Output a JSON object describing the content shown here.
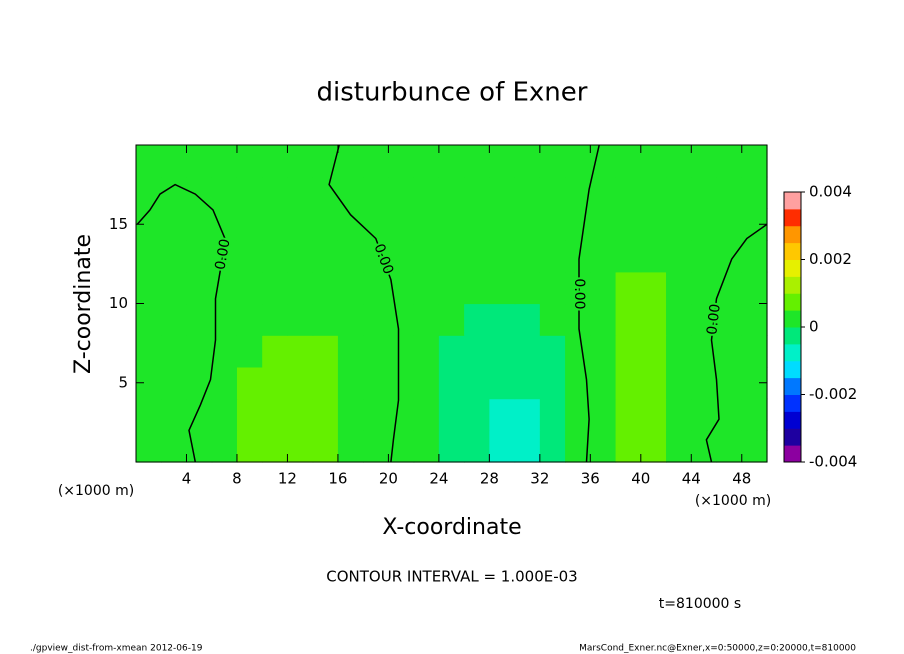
{
  "chart_data": {
    "type": "contour",
    "title": "disturbunce of Exner",
    "xlabel": "X-coordinate",
    "ylabel": "Z-coordinate",
    "x_unit": "(×1000 m)",
    "note": "CONTOUR INTERVAL = 1.000E-03",
    "time_label": "t=810000 s",
    "footer_left": "./gpview_dist-from-xmean  2012-06-19",
    "footer_right": "MarsCond_Exner.nc@Exner,x=0:50000,z=0:20000,t=810000",
    "xlim": [
      0,
      50
    ],
    "ylim": [
      0,
      20
    ],
    "xticks": [
      4,
      8,
      12,
      16,
      20,
      24,
      28,
      32,
      36,
      40,
      44,
      48
    ],
    "yticks": [
      5,
      10,
      15
    ],
    "x": [
      1,
      3,
      5,
      7,
      9,
      11,
      13,
      15,
      17,
      19,
      21,
      23,
      25,
      27,
      29,
      31,
      33,
      35,
      37,
      39,
      41,
      43,
      45,
      47,
      49
    ],
    "y": [
      1,
      3,
      5,
      7,
      9,
      11,
      13,
      15,
      17,
      19
    ],
    "z": [
      [
        0.0003,
        0.0003,
        0.0003,
        0.0003,
        0.0007,
        0.0007,
        0.0007,
        0.0007,
        0.0003,
        0.0003,
        0.0003,
        0.0003,
        -0.0002,
        -0.0002,
        -0.0007,
        -0.0007,
        -0.0002,
        0.0003,
        0.0003,
        0.0007,
        0.0007,
        0.0003,
        0.0003,
        0.0003,
        0.0003
      ],
      [
        0.0003,
        0.0003,
        0.0003,
        0.0003,
        0.0007,
        0.0007,
        0.0007,
        0.0007,
        0.0003,
        0.0003,
        0.0003,
        0.0003,
        -0.0002,
        -0.0002,
        -0.0007,
        -0.0007,
        -0.0002,
        0.0003,
        0.0003,
        0.0007,
        0.0007,
        0.0003,
        0.0003,
        0.0003,
        0.0003
      ],
      [
        0.0003,
        0.0003,
        0.0003,
        0.0003,
        0.0007,
        0.0007,
        0.0007,
        0.0007,
        0.0003,
        0.0003,
        0.0003,
        0.0003,
        -0.0002,
        -0.0002,
        -0.0002,
        -0.0002,
        -0.0002,
        0.0003,
        0.0003,
        0.0007,
        0.0007,
        0.0003,
        0.0003,
        0.0003,
        0.0003
      ],
      [
        0.0003,
        0.0003,
        0.0003,
        0.0003,
        0.0003,
        0.0007,
        0.0007,
        0.0007,
        0.0003,
        0.0003,
        0.0003,
        0.0003,
        -0.0002,
        -0.0002,
        -0.0002,
        -0.0002,
        -0.0002,
        0.0003,
        0.0003,
        0.0007,
        0.0007,
        0.0003,
        0.0003,
        0.0003,
        0.0003
      ],
      [
        0.0003,
        0.0003,
        0.0003,
        0.0003,
        0.0003,
        0.0003,
        0.0003,
        0.0003,
        0.0003,
        0.0003,
        0.0003,
        0.0003,
        0.0003,
        -0.0002,
        -0.0002,
        -0.0002,
        0.0003,
        0.0003,
        0.0003,
        0.0007,
        0.0007,
        0.0003,
        0.0003,
        0.0003,
        0.0003
      ],
      [
        0.0003,
        0.0003,
        0.0003,
        0.0003,
        0.0003,
        0.0003,
        0.0003,
        0.0003,
        0.0003,
        0.0003,
        0.0003,
        0.0003,
        0.0003,
        0.0003,
        0.0003,
        0.0003,
        0.0003,
        0.0003,
        0.0003,
        0.0007,
        0.0007,
        0.0003,
        0.0003,
        0.0003,
        0.0003
      ],
      [
        0.0003,
        0.0003,
        0.0003,
        0.0003,
        0.0003,
        0.0003,
        0.0003,
        0.0003,
        0.0003,
        0.0003,
        0.0003,
        0.0003,
        0.0003,
        0.0003,
        0.0003,
        0.0003,
        0.0003,
        0.0003,
        0.0003,
        0.0003,
        0.0003,
        0.0003,
        0.0003,
        0.0003,
        0.0003
      ],
      [
        0.0003,
        0.0003,
        0.0003,
        0.0003,
        0.0003,
        0.0003,
        0.0003,
        0.0003,
        0.0003,
        0.0003,
        0.0003,
        0.0003,
        0.0003,
        0.0003,
        0.0003,
        0.0003,
        0.0003,
        0.0003,
        0.0003,
        0.0003,
        0.0003,
        0.0003,
        0.0003,
        0.0003,
        0.0003
      ],
      [
        0.0003,
        0.0003,
        0.0003,
        0.0003,
        0.0003,
        0.0003,
        0.0003,
        0.0003,
        0.0003,
        0.0003,
        0.0003,
        0.0003,
        0.0003,
        0.0003,
        0.0003,
        0.0003,
        0.0003,
        0.0003,
        0.0003,
        0.0003,
        0.0003,
        0.0003,
        0.0003,
        0.0003,
        0.0003
      ],
      [
        0.0003,
        0.0003,
        0.0003,
        0.0003,
        0.0003,
        0.0003,
        0.0003,
        0.0003,
        0.0003,
        0.0003,
        0.0003,
        0.0003,
        0.0003,
        0.0003,
        0.0003,
        0.0003,
        0.0003,
        0.0003,
        0.0003,
        0.0003,
        0.0003,
        0.0003,
        0.0003,
        0.0003,
        0.0003
      ]
    ],
    "levels": [
      -0.004,
      -0.0035,
      -0.003,
      -0.0025,
      -0.002,
      -0.0015,
      -0.001,
      -0.0005,
      0,
      0.0005,
      0.001,
      0.0015,
      0.002,
      0.0025,
      0.003,
      0.0035,
      0.004
    ],
    "colors": [
      "#8c00a0",
      "#1e00a0",
      "#0000d2",
      "#0032ff",
      "#0078ff",
      "#00dcff",
      "#00f0c8",
      "#00e87a",
      "#1ee628",
      "#64f000",
      "#aaf000",
      "#e6f000",
      "#ffc800",
      "#ff9600",
      "#ff2d00",
      "#ffa0a0"
    ],
    "colorbar_ticks": [
      0.004,
      0.002,
      0,
      -0.002,
      -0.004
    ],
    "contours": [
      {
        "label": "0.00",
        "x": [
          0.1,
          1.1,
          1.9,
          3.1,
          4.7,
          6.1,
          7.1,
          6.7,
          6.3,
          6.3,
          5.9,
          5.1,
          4.2,
          4.7
        ],
        "y": [
          15,
          15.9,
          16.9,
          17.5,
          16.9,
          15.9,
          14,
          12.2,
          10.3,
          7.7,
          5.2,
          3.6,
          2,
          0
        ]
      },
      {
        "label": "0.00",
        "x": [
          16.1,
          15.3,
          17,
          19,
          20.2,
          20.8,
          20.8,
          20.4,
          20.2
        ],
        "y": [
          20,
          17.5,
          15.6,
          14.1,
          11.5,
          8.4,
          3.9,
          1.4,
          0
        ]
      },
      {
        "label": "0.00",
        "x": [
          36.7,
          35.9,
          35.1,
          35.1,
          35.7,
          35.9,
          35.7
        ],
        "y": [
          20,
          17.2,
          12.8,
          8.4,
          5.2,
          2.7,
          0
        ]
      },
      {
        "label": "0.00",
        "x": [
          50,
          48.4,
          47.2,
          46,
          45.6,
          46,
          46.2,
          45.2,
          45.6
        ],
        "y": [
          15,
          14.1,
          12.8,
          10.3,
          7.7,
          5.2,
          2.7,
          1.4,
          0
        ]
      }
    ]
  }
}
